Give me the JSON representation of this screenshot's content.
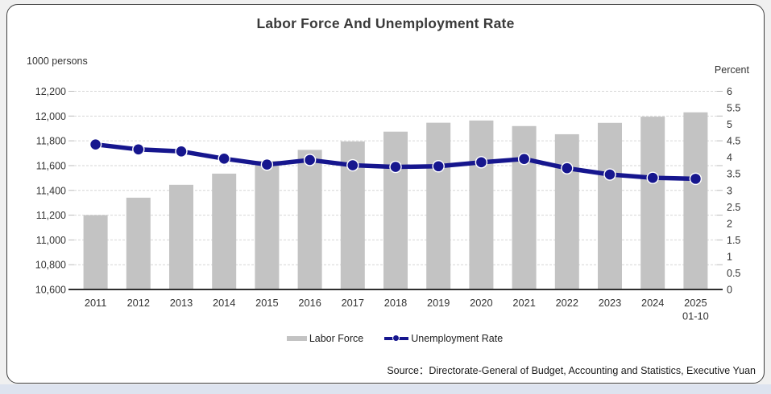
{
  "page": {
    "title": "Labor Force And Unemployment Rate",
    "source": "Source：Directorate-General of Budget, Accounting and Statistics, Executive Yuan"
  },
  "legend": {
    "bar_label": "Labor Force",
    "line_label": "Unemployment Rate"
  },
  "colors": {
    "bar": "#c3c3c3",
    "line": "#16168e",
    "grid": "#d6d6d6",
    "axis": "#333333",
    "text": "#333333"
  },
  "chart_data": {
    "type": "bar",
    "subtype": "bar+line dual-axis",
    "title": "Labor Force And Unemployment Rate",
    "categories": [
      "2011",
      "2012",
      "2013",
      "2014",
      "2015",
      "2016",
      "2017",
      "2018",
      "2019",
      "2020",
      "2021",
      "2022",
      "2023",
      "2024",
      "2025\n01-10"
    ],
    "series": [
      {
        "name": "Labor Force",
        "type": "bar",
        "axis": "left",
        "unit": "1000 persons",
        "values": [
          11200,
          11341,
          11445,
          11535,
          11638,
          11727,
          11795,
          11874,
          11946,
          11964,
          11919,
          11853,
          11945,
          11995,
          12030
        ]
      },
      {
        "name": "Unemployment Rate",
        "type": "line",
        "axis": "right",
        "unit": "Percent",
        "values": [
          4.39,
          4.24,
          4.18,
          3.96,
          3.78,
          3.92,
          3.76,
          3.71,
          3.73,
          3.85,
          3.95,
          3.67,
          3.48,
          3.38,
          3.35
        ]
      }
    ],
    "left_axis": {
      "title": "1000 persons",
      "min": 10600,
      "max": 12200,
      "step": 200
    },
    "right_axis": {
      "title": "Percent",
      "min": 0,
      "max": 6,
      "step": 0.5
    },
    "grid": "horizontal dashed",
    "legend_position": "bottom"
  }
}
